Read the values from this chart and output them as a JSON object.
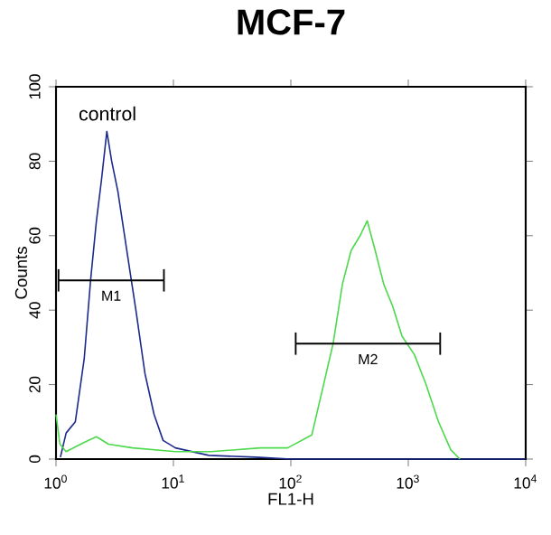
{
  "chart_data": {
    "type": "line",
    "title": "MCF-7",
    "xlabel": "FL1-H",
    "ylabel": "Counts",
    "log": "x",
    "xlim": [
      1,
      10000
    ],
    "ylim": [
      0,
      100
    ],
    "xticks": [
      {
        "value": 1,
        "label": "10$^{0}$"
      },
      {
        "value": 10,
        "label": "10$^{1}$"
      },
      {
        "value": 100,
        "label": "10$^{2}$"
      },
      {
        "value": 1000,
        "label": "10$^{3}$"
      },
      {
        "value": 10000,
        "label": "10$^{4}$"
      }
    ],
    "yticks": [
      0,
      20,
      40,
      60,
      80,
      100
    ],
    "series": [
      {
        "name": "control",
        "color": "#1c2a8c",
        "x": [
          1.09,
          1.22,
          1.46,
          1.74,
          1.97,
          2.21,
          2.44,
          2.71,
          2.98,
          3.36,
          4.01,
          4.79,
          5.72,
          6.84,
          8.17,
          10.4,
          20,
          50,
          100,
          10000
        ],
        "values": [
          0.5,
          7,
          10,
          27,
          48,
          64,
          75,
          88,
          80,
          72,
          56,
          40,
          23,
          12,
          5,
          3,
          1,
          0.5,
          0,
          0
        ]
      },
      {
        "color": "#4cd94c",
        "x": [
          1.0,
          1.08,
          1.22,
          1.74,
          2.21,
          2.8,
          4.5,
          10.4,
          21,
          55,
          94,
          151,
          190,
          229,
          275,
          326,
          389,
          447,
          523,
          618,
          737,
          885,
          1130,
          1418,
          1810,
          2300,
          2750
        ],
        "values": [
          12,
          4,
          2,
          4.5,
          6,
          4,
          3,
          2,
          2,
          3,
          3,
          6.5,
          20,
          31,
          47,
          56,
          60,
          64,
          56,
          47,
          41,
          33,
          28,
          20,
          10,
          2.5,
          0
        ]
      },
      {
        "name": "M1",
        "color": "#000000",
        "x": [
          1.05,
          8.3
        ],
        "values": [
          48,
          48
        ],
        "errors": [
          3,
          3
        ]
      },
      {
        "name": "M2",
        "color": "#000000",
        "x": [
          110,
          1870
        ],
        "values": [
          31,
          31
        ],
        "errors": [
          3,
          3
        ]
      }
    ]
  }
}
